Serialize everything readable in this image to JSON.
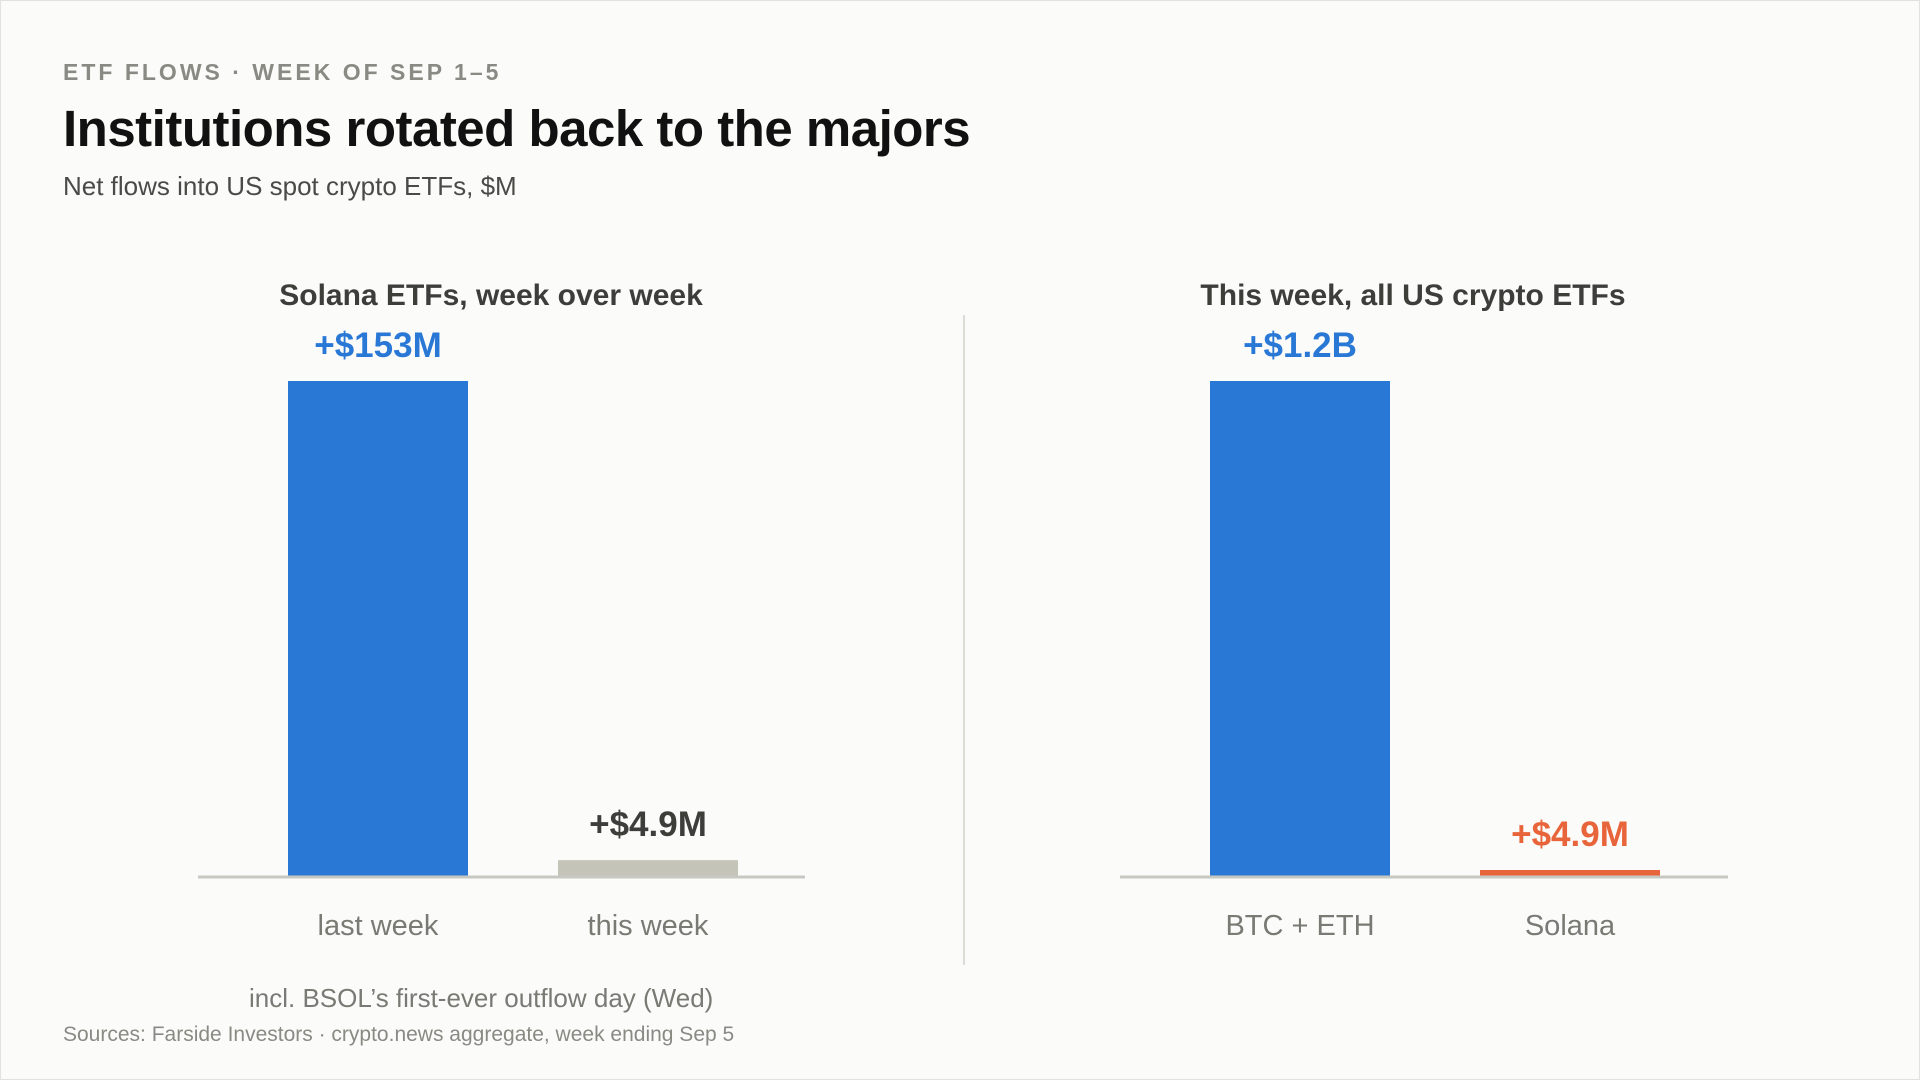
{
  "header": {
    "kicker": "ETF FLOWS · WEEK OF SEP 1–5",
    "title": "Institutions rotated back to the majors",
    "subtitle": "Net flows into US spot crypto ETFs, $M"
  },
  "footer": {
    "note": "incl. BSOL’s first-ever outflow day (Wed)",
    "source": "Sources: Farside Investors · crypto.news aggregate, week ending Sep 5"
  },
  "colors": {
    "blue": "#2a78d6",
    "gray_bar": "#c4c4b8",
    "orange": "#e8643a",
    "dark_label": "#3d3d3a",
    "axis": "#c8c8c2"
  },
  "chart_data": [
    {
      "type": "bar",
      "title": "Solana ETFs, week over week",
      "categories": [
        "last week",
        "this week"
      ],
      "values": [
        153,
        4.9
      ],
      "value_labels": [
        "+$153M",
        "+$4.9M"
      ],
      "bar_colors": [
        "#2a78d6",
        "#c4c4b8"
      ],
      "label_colors": [
        "#2a78d6",
        "#3d3d3a"
      ],
      "ylim": [
        0,
        153
      ],
      "grid": false,
      "unit": "$M"
    },
    {
      "type": "bar",
      "title": "This week, all US crypto ETFs",
      "categories": [
        "BTC + ETH",
        "Solana"
      ],
      "values": [
        1200,
        4.9
      ],
      "value_labels": [
        "+$1.2B",
        "+$4.9M"
      ],
      "bar_colors": [
        "#2a78d6",
        "#e8643a"
      ],
      "label_colors": [
        "#2a78d6",
        "#e8643a"
      ],
      "ylim": [
        0,
        1200
      ],
      "grid": false,
      "unit": "$M"
    }
  ]
}
